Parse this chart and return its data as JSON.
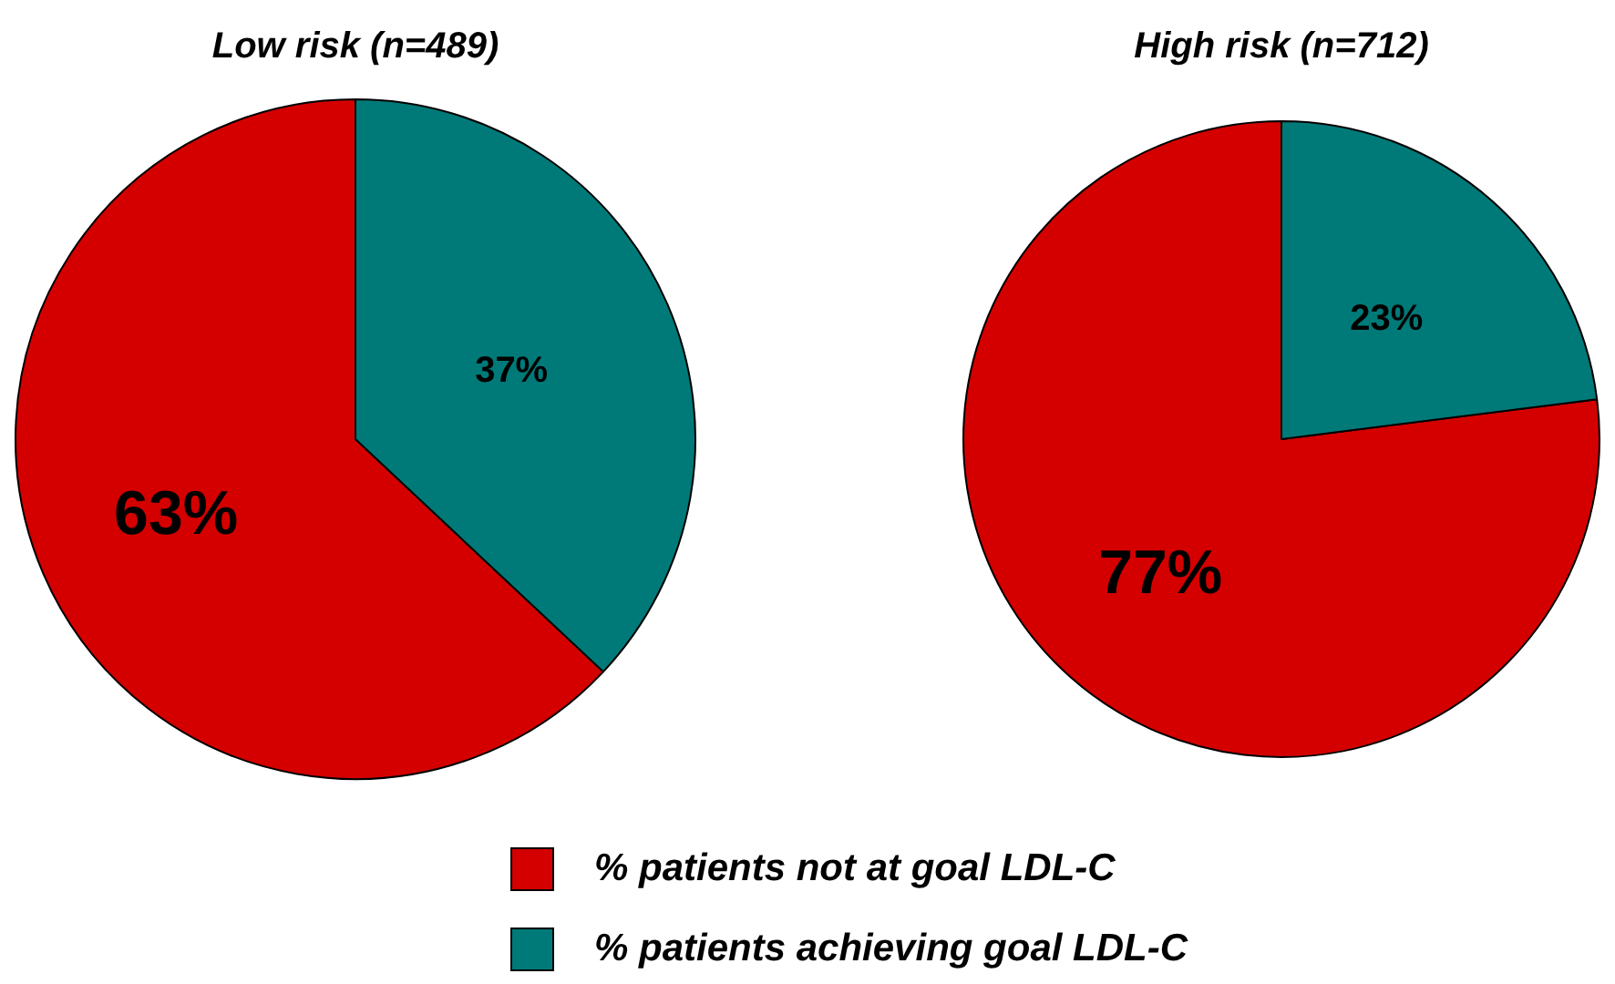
{
  "chart_data": [
    {
      "type": "pie",
      "title": "Low risk (n=489)",
      "categories": [
        "% patients not at goal LDL-C",
        "% patients achieving goal LDL-C"
      ],
      "values": [
        63,
        37
      ],
      "colors": [
        "#d40000",
        "#007a78"
      ],
      "value_labels": [
        "63%",
        "37%"
      ],
      "legend": "bottom"
    },
    {
      "type": "pie",
      "title": "High risk (n=712)",
      "categories": [
        null,
        null
      ],
      "values": [
        77,
        23
      ],
      "colors": [
        "#d40000",
        "#007a78"
      ],
      "value_labels": [
        "77%",
        "23%"
      ]
    }
  ]
}
